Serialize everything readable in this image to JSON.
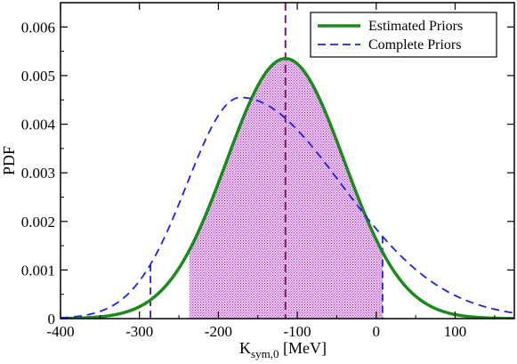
{
  "chart_data": {
    "type": "line",
    "title": "",
    "xlabel_main": "K",
    "xlabel_sub": "sym,0",
    "xlabel_unit": " [MeV]",
    "ylabel": "PDF",
    "xlim": [
      -400,
      175
    ],
    "ylim": [
      0,
      0.0065
    ],
    "x_ticks": [
      -400,
      -300,
      -200,
      -100,
      0,
      100
    ],
    "x_tick_labels": [
      "-400",
      "-300",
      "-200",
      "-100",
      "0",
      "100"
    ],
    "y_ticks": [
      0,
      0.001,
      0.002,
      0.003,
      0.004,
      0.005,
      0.006
    ],
    "y_tick_labels": [
      "0",
      "0.001",
      "0.002",
      "0.003",
      "0.004",
      "0.005",
      "0.006"
    ],
    "grid": false,
    "legend_position": "top-right",
    "series": [
      {
        "name": "Estimated Priors",
        "style": "solid",
        "color": "#1a8a1a",
        "shape": "gaussian",
        "mean": -115,
        "sigma": 74.5,
        "peak": 0.00535
      },
      {
        "name": "Complete Priors",
        "style": "dashed",
        "color": "#2020e0",
        "shape": "split-gaussian",
        "mode": -172,
        "sigma_left": 68,
        "sigma_right": 128,
        "peak": 0.00455
      }
    ],
    "shaded_interval": {
      "from": -237,
      "to": 8,
      "series": "Estimated Priors",
      "color": "#c060d0"
    },
    "complete_interval_markers": [
      -286,
      8
    ],
    "median_line": {
      "x": -115,
      "color": "#7a1a6a"
    }
  }
}
